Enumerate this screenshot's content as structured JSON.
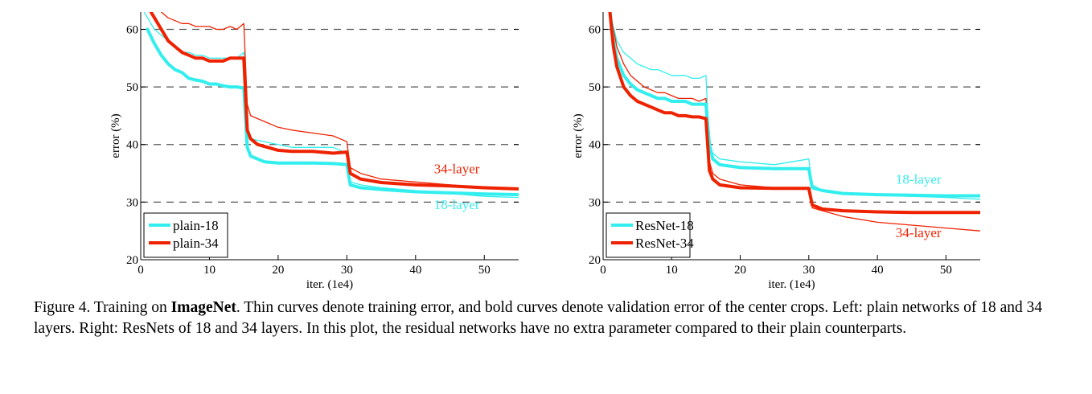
{
  "chart_data": [
    {
      "type": "line",
      "xlabel": "iter. (1e4)",
      "ylabel": "error (%)",
      "xlim": [
        0,
        55
      ],
      "ylim": [
        20,
        63
      ],
      "xticks": [
        0,
        10,
        20,
        30,
        40,
        50
      ],
      "yticks": [
        20,
        30,
        40,
        50,
        60
      ],
      "grid": "horizontal dashed at 30, 40, 50, 60",
      "legend_position": "bottom-left",
      "annotations": [
        {
          "text": "34-layer",
          "x": 46,
          "y": 35.0,
          "color": "#ee2200"
        },
        {
          "text": "18-layer",
          "x": 46,
          "y": 28.8,
          "color": "#33eeee"
        }
      ],
      "series": [
        {
          "name": "plain-18",
          "kind": "validation",
          "color": "#33eeee",
          "x": [
            1,
            2,
            3,
            4,
            5,
            6,
            7,
            8,
            9,
            10,
            11,
            12,
            13,
            14,
            15,
            15.5,
            16,
            18,
            20,
            22,
            25,
            28,
            30,
            30.5,
            32,
            35,
            40,
            45,
            50,
            55
          ],
          "y": [
            60,
            57.5,
            55.5,
            54,
            53,
            52.5,
            51.5,
            51.2,
            51,
            50.5,
            50.5,
            50.2,
            50,
            50,
            49.8,
            39.5,
            38,
            37,
            36.8,
            36.8,
            36.8,
            36.7,
            36.5,
            33,
            32.5,
            32.2,
            31.8,
            31.6,
            31.4,
            31.3
          ]
        },
        {
          "name": "plain-18",
          "kind": "training",
          "color": "#33eeee",
          "legend": false,
          "x": [
            0.5,
            1,
            2,
            3,
            4,
            5,
            6,
            7,
            8,
            9,
            10,
            11,
            12,
            13,
            14,
            15,
            15.5,
            16,
            18,
            20,
            22,
            25,
            28,
            30,
            30.5,
            32,
            35,
            40,
            45,
            50,
            55
          ],
          "y": [
            63,
            62,
            60,
            59,
            58,
            57,
            56,
            56,
            55.5,
            55.5,
            55,
            55,
            55,
            55,
            55,
            56,
            43,
            41,
            40.5,
            40,
            39.5,
            39.5,
            39.5,
            38.5,
            33.5,
            33,
            32.5,
            32,
            31.5,
            31,
            30.8
          ]
        },
        {
          "name": "plain-34",
          "kind": "validation",
          "color": "#ee2200",
          "x": [
            1.5,
            2,
            3,
            4,
            5,
            6,
            7,
            8,
            9,
            10,
            11,
            12,
            13,
            14,
            15,
            15.5,
            16,
            17,
            20,
            22,
            25,
            28,
            30,
            30.5,
            32,
            35,
            40,
            45,
            50,
            55
          ],
          "y": [
            63,
            62,
            60,
            58,
            57,
            56,
            55.5,
            55,
            55,
            54.5,
            54.5,
            54.5,
            55,
            55,
            55,
            42.5,
            41,
            40,
            39,
            38.8,
            38.8,
            38.5,
            38.7,
            35,
            34,
            33.4,
            33,
            32.8,
            32.5,
            32.3
          ]
        },
        {
          "name": "plain-34",
          "kind": "training",
          "color": "#ee2200",
          "legend": false,
          "x": [
            3,
            4,
            5,
            6,
            7,
            8,
            9,
            10,
            11,
            12,
            13,
            14,
            15,
            15.5,
            16,
            18,
            20,
            22,
            25,
            28,
            30,
            30.5,
            32,
            35,
            40,
            45,
            50,
            55
          ],
          "y": [
            63,
            62,
            61.5,
            61,
            61,
            60.5,
            60.5,
            60.5,
            60,
            60,
            60.5,
            60,
            61,
            47,
            45,
            44,
            43,
            42.5,
            42,
            41.5,
            40.5,
            36,
            35,
            34,
            33.5,
            33,
            32.5,
            32.2
          ]
        }
      ]
    },
    {
      "type": "line",
      "xlabel": "iter. (1e4)",
      "ylabel": "error (%)",
      "xlim": [
        0,
        55
      ],
      "ylim": [
        20,
        63
      ],
      "xticks": [
        0,
        10,
        20,
        30,
        40,
        50
      ],
      "yticks": [
        20,
        30,
        40,
        50,
        60
      ],
      "grid": "horizontal dashed at 30, 40, 50, 60",
      "legend_position": "bottom-left",
      "annotations": [
        {
          "text": "18-layer",
          "x": 46,
          "y": 33.2,
          "color": "#33eeee"
        },
        {
          "text": "34-layer",
          "x": 46,
          "y": 23.9,
          "color": "#ee2200"
        }
      ],
      "series": [
        {
          "name": "ResNet-18",
          "kind": "validation",
          "color": "#33eeee",
          "x": [
            1,
            1.5,
            2,
            3,
            4,
            5,
            6,
            7,
            8,
            9,
            10,
            11,
            12,
            13,
            14,
            15,
            15.5,
            16,
            17,
            20,
            25,
            30,
            30.5,
            32,
            35,
            40,
            45,
            50,
            55
          ],
          "y": [
            63,
            58,
            55,
            52,
            50.5,
            49.5,
            49,
            48.5,
            48,
            48,
            47.5,
            47.5,
            47.5,
            47,
            47,
            47,
            40,
            37.5,
            36.5,
            36,
            35.8,
            35.8,
            32.5,
            32,
            31.5,
            31.3,
            31.2,
            31.1,
            31.1
          ]
        },
        {
          "name": "ResNet-18",
          "kind": "training",
          "color": "#33eeee",
          "legend": false,
          "x": [
            1,
            2,
            3,
            4,
            5,
            6,
            7,
            8,
            9,
            10,
            11,
            12,
            13,
            14,
            15,
            15.5,
            16,
            17,
            20,
            25,
            30,
            30.5,
            32,
            35,
            40,
            45,
            50,
            55
          ],
          "y": [
            63,
            58,
            56,
            55,
            54,
            53.5,
            53,
            53,
            52.5,
            52,
            52,
            52,
            51.5,
            51.5,
            52,
            40,
            38.5,
            37.5,
            37,
            36.5,
            37.5,
            33,
            32,
            31.5,
            31.2,
            31,
            30.8,
            30.5
          ]
        },
        {
          "name": "ResNet-34",
          "kind": "validation",
          "color": "#ee2200",
          "x": [
            1,
            1.5,
            2,
            3,
            4,
            5,
            6,
            7,
            8,
            9,
            10,
            11,
            12,
            13,
            14,
            15,
            15.5,
            16,
            17,
            20,
            25,
            30,
            30.5,
            32,
            35,
            40,
            45,
            50,
            55
          ],
          "y": [
            63,
            57,
            53.5,
            50,
            48.5,
            47.5,
            47,
            46.5,
            46,
            45.5,
            45.5,
            45,
            45,
            44.8,
            44.8,
            44.5,
            35.5,
            34,
            33,
            32.5,
            32.4,
            32.4,
            29.5,
            28.8,
            28.5,
            28.3,
            28.2,
            28.2,
            28.2
          ]
        },
        {
          "name": "ResNet-34",
          "kind": "training",
          "color": "#ee2200",
          "legend": false,
          "x": [
            1,
            2,
            3,
            4,
            5,
            6,
            7,
            8,
            9,
            10,
            11,
            12,
            13,
            14,
            15,
            15.5,
            16,
            17,
            20,
            25,
            30,
            30.5,
            32,
            35,
            40,
            45,
            50,
            55
          ],
          "y": [
            63,
            57,
            54,
            52,
            51,
            50,
            49.5,
            49,
            49,
            48.5,
            48,
            48,
            48,
            47.5,
            48,
            37,
            35,
            34,
            33,
            32.5,
            32.5,
            29,
            28.5,
            27.5,
            26.5,
            26,
            25.5,
            25
          ]
        }
      ]
    }
  ],
  "caption": {
    "prefix": "Figure 4. Training on ",
    "bold": "ImageNet",
    "rest": ". Thin curves denote training error, and bold curves denote validation error of the center crops. Left: plain networks of 18 and 34 layers. Right: ResNets of 18 and 34 layers. In this plot, the residual networks have no extra parameter compared to their plain counterparts."
  }
}
